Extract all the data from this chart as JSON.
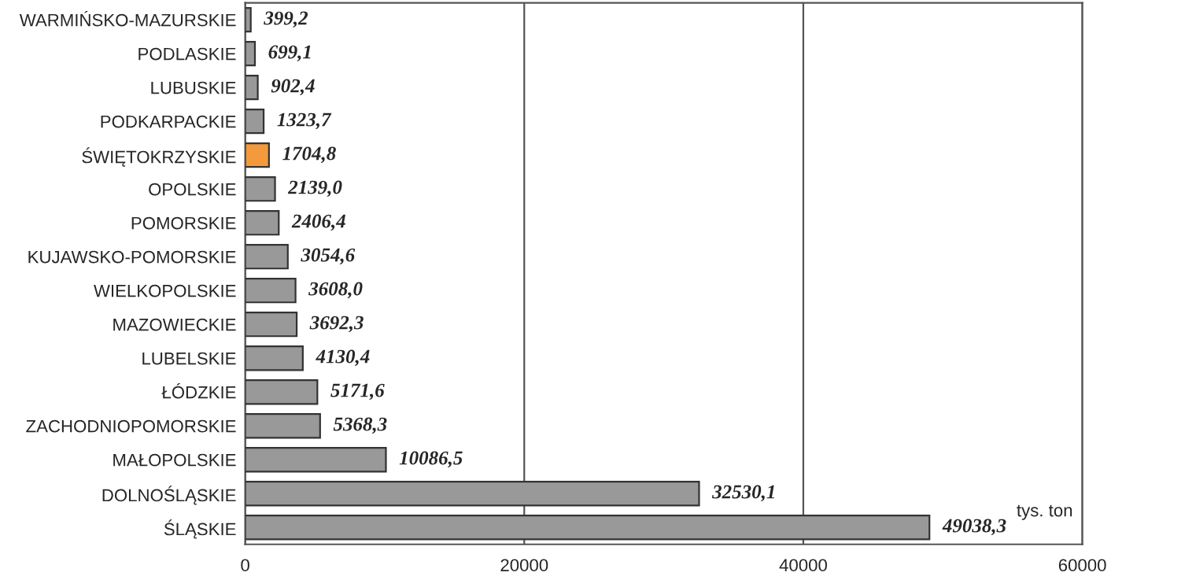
{
  "chart_data": {
    "type": "bar",
    "orientation": "horizontal",
    "categories": [
      "WARMIŃSKO-MAZURSKIE",
      "PODLASKIE",
      "LUBUSKIE",
      "PODKARPACKIE",
      "ŚWIĘTOKRZYSKIE",
      "OPOLSKIE",
      "POMORSKIE",
      "KUJAWSKO-POMORSKIE",
      "WIELKOPOLSKIE",
      "MAZOWIECKIE",
      "LUBELSKIE",
      "ŁÓDZKIE",
      "ZACHODNIOPOMORSKIE",
      "MAŁOPOLSKIE",
      "DOLNOŚLĄSKIE",
      "ŚLĄSKIE"
    ],
    "values": [
      399.2,
      699.1,
      902.4,
      1323.7,
      1704.8,
      2139.0,
      2406.4,
      3054.6,
      3608.0,
      3692.3,
      4130.4,
      5171.6,
      5368.3,
      10086.5,
      32530.1,
      49038.3
    ],
    "value_labels": [
      "399,2",
      "699,1",
      "902,4",
      "1323,7",
      "1704,8",
      "2139,0",
      "2406,4",
      "3054,6",
      "3608,0",
      "3692,3",
      "4130,4",
      "5171,6",
      "5368,3",
      "10086,5",
      "32530,1",
      "49038,3"
    ],
    "colors": [
      "#999999",
      "#999999",
      "#999999",
      "#999999",
      "#f39a3c",
      "#999999",
      "#999999",
      "#999999",
      "#999999",
      "#999999",
      "#999999",
      "#999999",
      "#999999",
      "#999999",
      "#999999",
      "#999999"
    ],
    "xlim": [
      0,
      60000
    ],
    "xticks": [
      0,
      20000,
      40000,
      60000
    ],
    "grid": "x",
    "xlabel": "tys. ton"
  }
}
